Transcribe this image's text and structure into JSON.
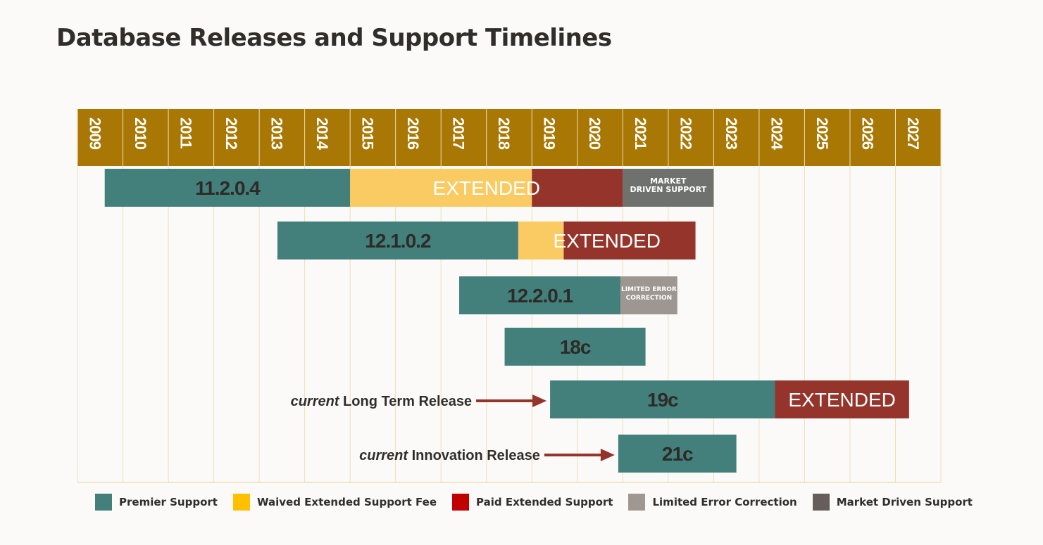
{
  "title": "Database Releases and Support Timelines",
  "colors": {
    "header": "#a97703",
    "grid": "#eedfb8",
    "premier": "#43807b",
    "waived": "#f9cb62",
    "paid": "#95342b",
    "limited": "#9e9690",
    "market": "#6e716d",
    "arrow": "#95342b"
  },
  "chart_data": {
    "type": "gantt",
    "title": "Database Releases and Support Timelines",
    "xlim": [
      2009,
      2028
    ],
    "x_ticks": [
      "2009",
      "2010",
      "2011",
      "2012",
      "2013",
      "2014",
      "2015",
      "2016",
      "2017",
      "2018",
      "2019",
      "2020",
      "2021",
      "2022",
      "2023",
      "2024",
      "2025",
      "2026",
      "2027"
    ],
    "grid": true,
    "legend_placement": "bottom",
    "legend": [
      {
        "name": "Premier Support",
        "color": "#43807b"
      },
      {
        "name": "Waived Extended Support Fee",
        "color": "#ffc000"
      },
      {
        "name": "Paid Extended Support",
        "color": "#c00000"
      },
      {
        "name": "Limited Error Correction",
        "color": "#a09890"
      },
      {
        "name": "Market Driven Support",
        "color": "#655e5a"
      }
    ],
    "releases": [
      {
        "name": "11.2.0.4",
        "extended_label": "EXTENDED",
        "segments": [
          {
            "type": "premier",
            "start": 2009.6,
            "end": 2015.0
          },
          {
            "type": "waived",
            "start": 2015.0,
            "end": 2019.0
          },
          {
            "type": "paid",
            "start": 2019.0,
            "end": 2021.0
          },
          {
            "type": "market",
            "start": 2021.0,
            "end": 2023.0,
            "label": [
              "MARKET",
              "DRIVEN SUPPORT"
            ]
          }
        ]
      },
      {
        "name": "12.1.0.2",
        "extended_label": "EXTENDED",
        "segments": [
          {
            "type": "premier",
            "start": 2013.4,
            "end": 2018.7
          },
          {
            "type": "waived",
            "start": 2018.7,
            "end": 2019.7
          },
          {
            "type": "paid",
            "start": 2019.7,
            "end": 2022.6
          }
        ]
      },
      {
        "name": "12.2.0.1",
        "segments": [
          {
            "type": "premier",
            "start": 2017.4,
            "end": 2020.95
          },
          {
            "type": "limited",
            "start": 2020.95,
            "end": 2022.2,
            "label": [
              "LIMITED ERROR",
              "CORRECTION"
            ]
          }
        ]
      },
      {
        "name": "18c",
        "segments": [
          {
            "type": "premier",
            "start": 2018.4,
            "end": 2021.5
          }
        ]
      },
      {
        "name": "19c",
        "extended_label": "EXTENDED",
        "segments": [
          {
            "type": "premier",
            "start": 2019.4,
            "end": 2024.35
          },
          {
            "type": "paid",
            "start": 2024.35,
            "end": 2027.3
          }
        ]
      },
      {
        "name": "21c",
        "segments": [
          {
            "type": "premier",
            "start": 2020.9,
            "end": 2023.5
          }
        ]
      }
    ],
    "annotations": [
      {
        "release": "19c",
        "italic": "current",
        "text": " Long Term Release"
      },
      {
        "release": "21c",
        "italic": "current",
        "text": " Innovation Release"
      }
    ]
  }
}
